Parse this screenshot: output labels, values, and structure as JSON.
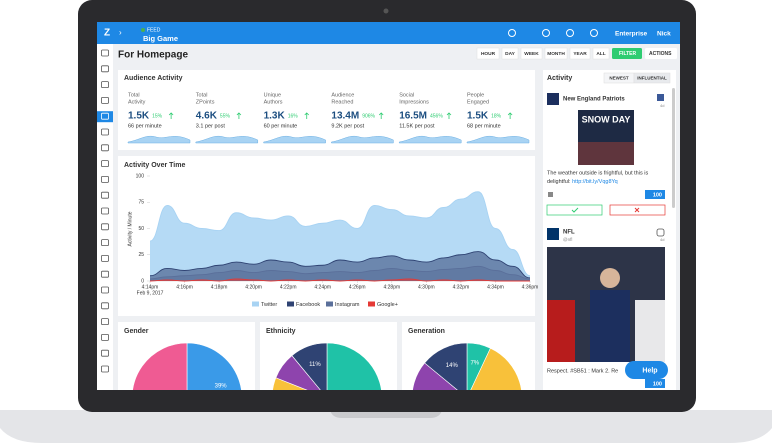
{
  "nav": {
    "logo": "Z",
    "feed_label": "FEED",
    "feed_name": "Big Game",
    "account": "Enterprise",
    "user": "Nick"
  },
  "page_title": "For Homepage",
  "time_filters": [
    "HOUR",
    "DAY",
    "WEEK",
    "MONTH",
    "YEAR",
    "ALL"
  ],
  "filter_button": "FILTER",
  "actions_button": "ACTIONS",
  "audience_activity": {
    "title": "Audience Activity",
    "metrics": [
      {
        "label_lines": [
          "Total",
          "Activity"
        ],
        "value": "1.5K",
        "change": "15%",
        "rate": "66 per minute"
      },
      {
        "label_lines": [
          "Total",
          "ZPoints"
        ],
        "value": "4.6K",
        "change": "55%",
        "rate": "3.1 per post"
      },
      {
        "label_lines": [
          "Unique",
          "Authors"
        ],
        "value": "1.3K",
        "change": "16%",
        "rate": "60 per minute"
      },
      {
        "label_lines": [
          "Audience",
          "Reached"
        ],
        "value": "13.4M",
        "change": "906%",
        "rate": "9.2K per post"
      },
      {
        "label_lines": [
          "Social",
          "Impressions"
        ],
        "value": "16.5M",
        "change": "456%",
        "rate": "11.5K per post"
      },
      {
        "label_lines": [
          "People",
          "Engaged"
        ],
        "value": "1.5K",
        "change": "18%",
        "rate": "68 per minute"
      }
    ]
  },
  "activity_chart": {
    "type": "area",
    "title": "Activity Over Time",
    "y_label": "Activity / Minute",
    "date_label": "Feb 9, 2017",
    "categories": [
      "4:14pm",
      null,
      "4:16pm",
      null,
      "4:18pm",
      null,
      "4:20pm",
      null,
      "4:22pm",
      null,
      "4:24pm",
      null,
      "4:26pm",
      null,
      "4:28pm",
      null,
      "4:30pm",
      null,
      "4:32pm",
      null,
      "4:34pm",
      null,
      "4:36pm"
    ],
    "ylim": [
      0,
      100
    ],
    "yticks": [
      0,
      25,
      50,
      75,
      100
    ],
    "series": [
      {
        "name": "Twitter",
        "color": "#a8d3f3",
        "values": [
          38,
          72,
          55,
          50,
          48,
          65,
          60,
          58,
          62,
          52,
          55,
          58,
          50,
          72,
          68,
          62,
          60,
          70,
          78,
          85,
          50,
          30,
          5
        ]
      },
      {
        "name": "Facebook",
        "color": "#2f4373",
        "values": [
          5,
          12,
          10,
          12,
          15,
          18,
          16,
          20,
          18,
          14,
          15,
          20,
          18,
          22,
          24,
          20,
          18,
          22,
          25,
          28,
          20,
          14,
          3
        ]
      },
      {
        "name": "Instagram",
        "color": "#5a6f9a",
        "values": [
          2,
          4,
          5,
          6,
          8,
          10,
          8,
          10,
          9,
          7,
          8,
          9,
          8,
          10,
          12,
          10,
          9,
          11,
          12,
          14,
          10,
          6,
          2
        ]
      },
      {
        "name": "Google+",
        "color": "#e53935",
        "values": [
          0,
          1,
          0,
          1,
          0,
          2,
          1,
          0,
          1,
          0,
          1,
          0,
          1,
          0,
          1,
          2,
          0,
          1,
          0,
          1,
          0,
          0,
          0
        ]
      }
    ]
  },
  "demographics": [
    {
      "type": "pie",
      "title": "Gender",
      "values": [
        39,
        61
      ],
      "value_labels": [
        "39%",
        null
      ],
      "colors": [
        "#3a9ae8",
        "#ef5b93"
      ]
    },
    {
      "type": "pie",
      "title": "Ethnicity",
      "values": [
        55,
        14,
        12,
        8,
        11
      ],
      "value_labels": [
        null,
        null,
        "12%",
        null,
        "11%"
      ],
      "colors": [
        "#1fc2a7",
        "#ef5b93",
        "#f8c13a",
        "#8e44ad",
        "#2f4373"
      ]
    },
    {
      "type": "pie",
      "title": "Generation",
      "values": [
        7,
        40,
        10,
        29,
        14
      ],
      "value_labels": [
        "7%",
        null,
        null,
        null,
        "14%"
      ],
      "colors": [
        "#1fc2a7",
        "#f8c13a",
        "#ef5b93",
        "#8e44ad",
        "#2f4373"
      ]
    }
  ],
  "activity_feed": {
    "title": "Activity",
    "tabs": [
      "NEWEST",
      "INFLUENTIAL"
    ],
    "posts": [
      {
        "author": "New England Patriots",
        "age": "4d",
        "image_text": "SNOW DAY",
        "text": "The weather outside is frightful, but this is",
        "text2": "delightful: ",
        "link": "http://bit.ly/Vqg8Yq",
        "score": "100"
      },
      {
        "author": "NFL",
        "handle": "@nfl",
        "age": "4d",
        "text": "Respect. #SB51 : Mark 2. Re",
        "score": "100"
      }
    ],
    "help": "Help"
  }
}
